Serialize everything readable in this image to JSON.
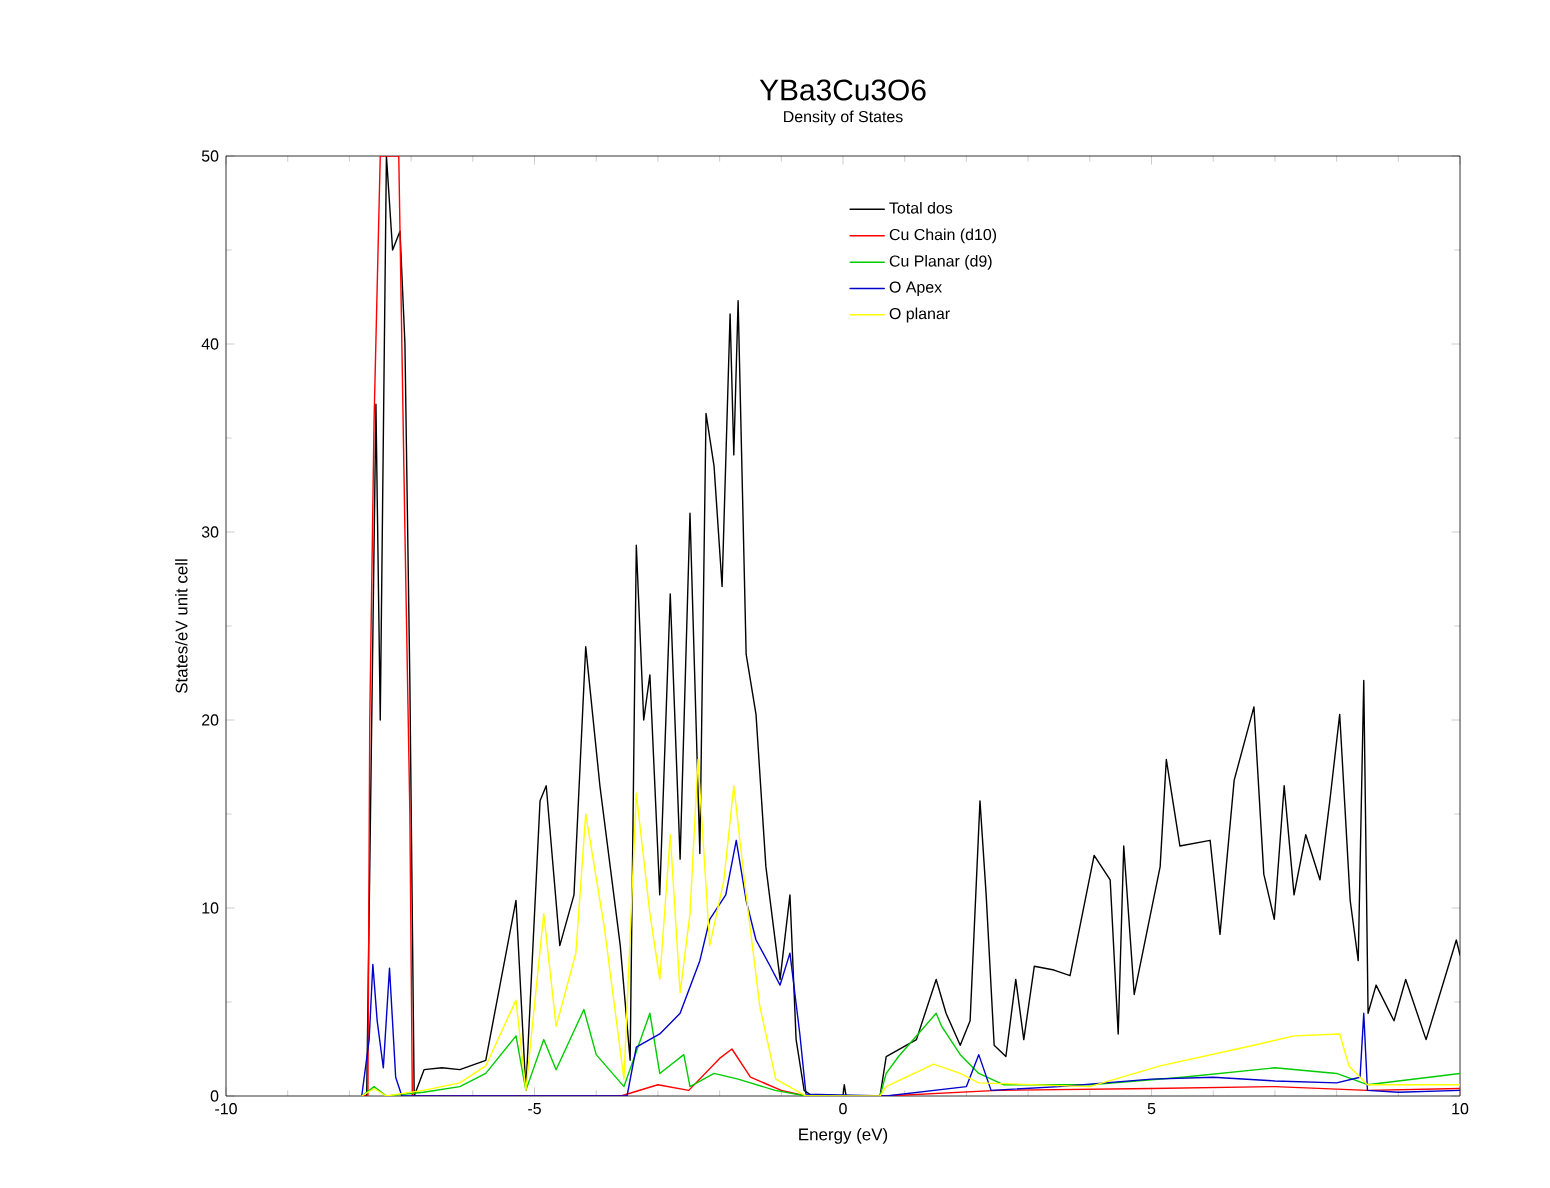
{
  "chart_data": {
    "type": "line",
    "title": "YBa3Cu3O6",
    "subtitle": "Density of States",
    "xlabel": "Energy (eV)",
    "ylabel": "States/eV unit cell",
    "xlim": [
      -10,
      10
    ],
    "ylim": [
      0,
      50
    ],
    "xticks": [
      -10,
      -5,
      0,
      5,
      10
    ],
    "yticks": [
      0,
      10,
      20,
      30,
      40,
      50
    ],
    "legend": "top",
    "marker": "none",
    "line_style": "solid",
    "series": [
      {
        "name": "Total dos",
        "color": "#000000",
        "x": [
          -7.8,
          -7.72,
          -7.65,
          -7.57,
          -7.5,
          -7.4,
          -7.3,
          -7.18,
          -7.1,
          -7.02,
          -6.95,
          -6.79,
          -6.5,
          -6.21,
          -5.79,
          -5.3,
          -5.14,
          -4.91,
          -4.81,
          -4.59,
          -4.36,
          -4.17,
          -3.94,
          -3.61,
          -3.45,
          -3.35,
          -3.23,
          -3.13,
          -2.97,
          -2.8,
          -2.64,
          -2.48,
          -2.32,
          -2.22,
          -2.09,
          -1.96,
          -1.83,
          -1.77,
          -1.7,
          -1.57,
          -1.41,
          -1.25,
          -1.02,
          -0.86,
          -0.76,
          -0.63,
          -0.5,
          0.0,
          0.02,
          0.05,
          0.6,
          0.7,
          1.19,
          1.51,
          1.67,
          1.9,
          2.06,
          2.22,
          2.32,
          2.45,
          2.64,
          2.8,
          2.93,
          3.1,
          3.42,
          3.68,
          4.07,
          4.33,
          4.46,
          4.55,
          4.72,
          5.14,
          5.24,
          5.46,
          5.95,
          6.11,
          6.34,
          6.66,
          6.82,
          6.99,
          7.15,
          7.31,
          7.5,
          7.73,
          7.89,
          8.05,
          8.22,
          8.35,
          8.44,
          8.51,
          8.64,
          8.93,
          9.12,
          9.45,
          9.94,
          10.0
        ],
        "values": [
          0,
          0,
          17,
          36.8,
          20,
          50,
          45,
          46,
          40,
          22,
          0,
          1.4,
          1.5,
          1.4,
          1.9,
          10.4,
          0.3,
          15.7,
          16.5,
          8.0,
          10.7,
          23.9,
          16.5,
          8.0,
          1.9,
          29.3,
          20.0,
          22.4,
          10.7,
          26.7,
          12.6,
          31.0,
          12.9,
          36.3,
          33.5,
          27.1,
          41.6,
          34.1,
          42.3,
          23.5,
          20.3,
          12.2,
          6.2,
          10.7,
          3.0,
          0.3,
          0,
          0,
          0.6,
          0,
          0,
          2.1,
          3.0,
          6.2,
          4.4,
          2.7,
          4.0,
          15.7,
          10.7,
          2.7,
          2.1,
          6.2,
          3.0,
          6.9,
          6.7,
          6.4,
          12.8,
          11.5,
          3.3,
          13.3,
          5.4,
          12.2,
          17.9,
          13.3,
          13.6,
          8.6,
          16.8,
          20.7,
          11.8,
          9.4,
          16.5,
          10.7,
          13.9,
          11.5,
          15.7,
          20.3,
          10.4,
          7.2,
          22.1,
          4.4,
          5.9,
          4.0,
          6.2,
          3.0,
          8.3,
          7.5
        ]
      },
      {
        "name": "Cu Chain (d10)",
        "color": "#ff0000",
        "x": [
          -7.8,
          -7.7,
          -7.67,
          -7.6,
          -7.5,
          -7.4,
          -7.3,
          -7.2,
          -7.1,
          -7.02,
          -6.98,
          -3.6,
          -3.4,
          -3.0,
          -2.5,
          -2.0,
          -1.8,
          -1.5,
          -1.0,
          -0.6,
          0.7,
          2.5,
          5.0,
          7.0,
          8.5,
          10.0
        ],
        "values": [
          0,
          0,
          20,
          36,
          50,
          50,
          50,
          50,
          30,
          15,
          0,
          0,
          0.2,
          0.6,
          0.3,
          2.0,
          2.5,
          1.0,
          0.3,
          0,
          0,
          0.3,
          0.4,
          0.5,
          0.3,
          0.4
        ]
      },
      {
        "name": "Cu Planar (d9)",
        "color": "#00cc00",
        "x": [
          -7.8,
          -7.6,
          -7.4,
          -6.8,
          -6.21,
          -5.79,
          -5.3,
          -5.14,
          -4.85,
          -4.65,
          -4.2,
          -4.0,
          -3.55,
          -3.13,
          -2.97,
          -2.58,
          -2.48,
          -2.09,
          -1.7,
          -1.1,
          -0.6,
          0.6,
          0.7,
          0.9,
          1.51,
          1.6,
          1.9,
          2.2,
          2.6,
          4.0,
          5.5,
          7.0,
          8.0,
          8.5,
          9.0,
          10.0
        ],
        "values": [
          0,
          0.5,
          0,
          0.2,
          0.5,
          1.2,
          3.2,
          0.3,
          3.0,
          1.4,
          4.6,
          2.2,
          0.5,
          4.4,
          1.2,
          2.2,
          0.5,
          1.2,
          0.9,
          0.3,
          0,
          0,
          1.2,
          2.1,
          4.4,
          3.7,
          2.2,
          1.2,
          0.6,
          0.6,
          1.0,
          1.5,
          1.2,
          0.6,
          0.8,
          1.2
        ]
      },
      {
        "name": "O Apex",
        "color": "#0000cc",
        "x": [
          -7.8,
          -7.68,
          -7.62,
          -7.55,
          -7.45,
          -7.35,
          -7.25,
          -7.15,
          -3.5,
          -3.35,
          -2.97,
          -2.64,
          -2.32,
          -2.16,
          -1.9,
          -1.73,
          -1.57,
          -1.41,
          -1.18,
          -1.02,
          -0.86,
          -0.7,
          -0.6,
          0.7,
          2.0,
          2.2,
          2.4,
          3.5,
          5.0,
          6.0,
          7.0,
          8.0,
          8.38,
          8.44,
          8.5,
          9.0,
          10.0
        ],
        "values": [
          0,
          3,
          7.0,
          4,
          1.5,
          6.8,
          1,
          0,
          0,
          2.6,
          3.3,
          4.4,
          7.2,
          9.4,
          10.7,
          13.6,
          10.4,
          8.3,
          6.9,
          5.9,
          7.6,
          3.3,
          0.1,
          0,
          0.5,
          2.2,
          0.3,
          0.5,
          0.9,
          1.0,
          0.8,
          0.7,
          1.0,
          4.4,
          0.3,
          0.2,
          0.3
        ]
      },
      {
        "name": "O planar",
        "color": "#ffff00",
        "x": [
          -7.8,
          -7.6,
          -7.4,
          -6.8,
          -6.21,
          -5.79,
          -5.3,
          -5.14,
          -4.85,
          -4.65,
          -4.33,
          -4.17,
          -3.87,
          -3.55,
          -3.35,
          -3.13,
          -2.97,
          -2.8,
          -2.64,
          -2.48,
          -2.35,
          -2.16,
          -1.93,
          -1.77,
          -1.6,
          -1.35,
          -1.09,
          -0.6,
          0.6,
          0.7,
          1.47,
          1.9,
          2.2,
          4.0,
          5.14,
          6.66,
          7.31,
          8.05,
          8.2,
          8.5,
          10.0
        ],
        "values": [
          0,
          0.4,
          0,
          0.3,
          0.7,
          1.6,
          5.1,
          0.3,
          9.7,
          3.7,
          7.6,
          15.0,
          9.0,
          0.9,
          16.1,
          9.7,
          6.2,
          13.9,
          5.5,
          9.7,
          17.9,
          8.0,
          11.5,
          16.5,
          11.5,
          4.8,
          0.9,
          0,
          0,
          0.5,
          1.7,
          1.2,
          0.7,
          0.5,
          1.6,
          2.7,
          3.2,
          3.3,
          1.6,
          0.6,
          0.6
        ]
      }
    ]
  }
}
